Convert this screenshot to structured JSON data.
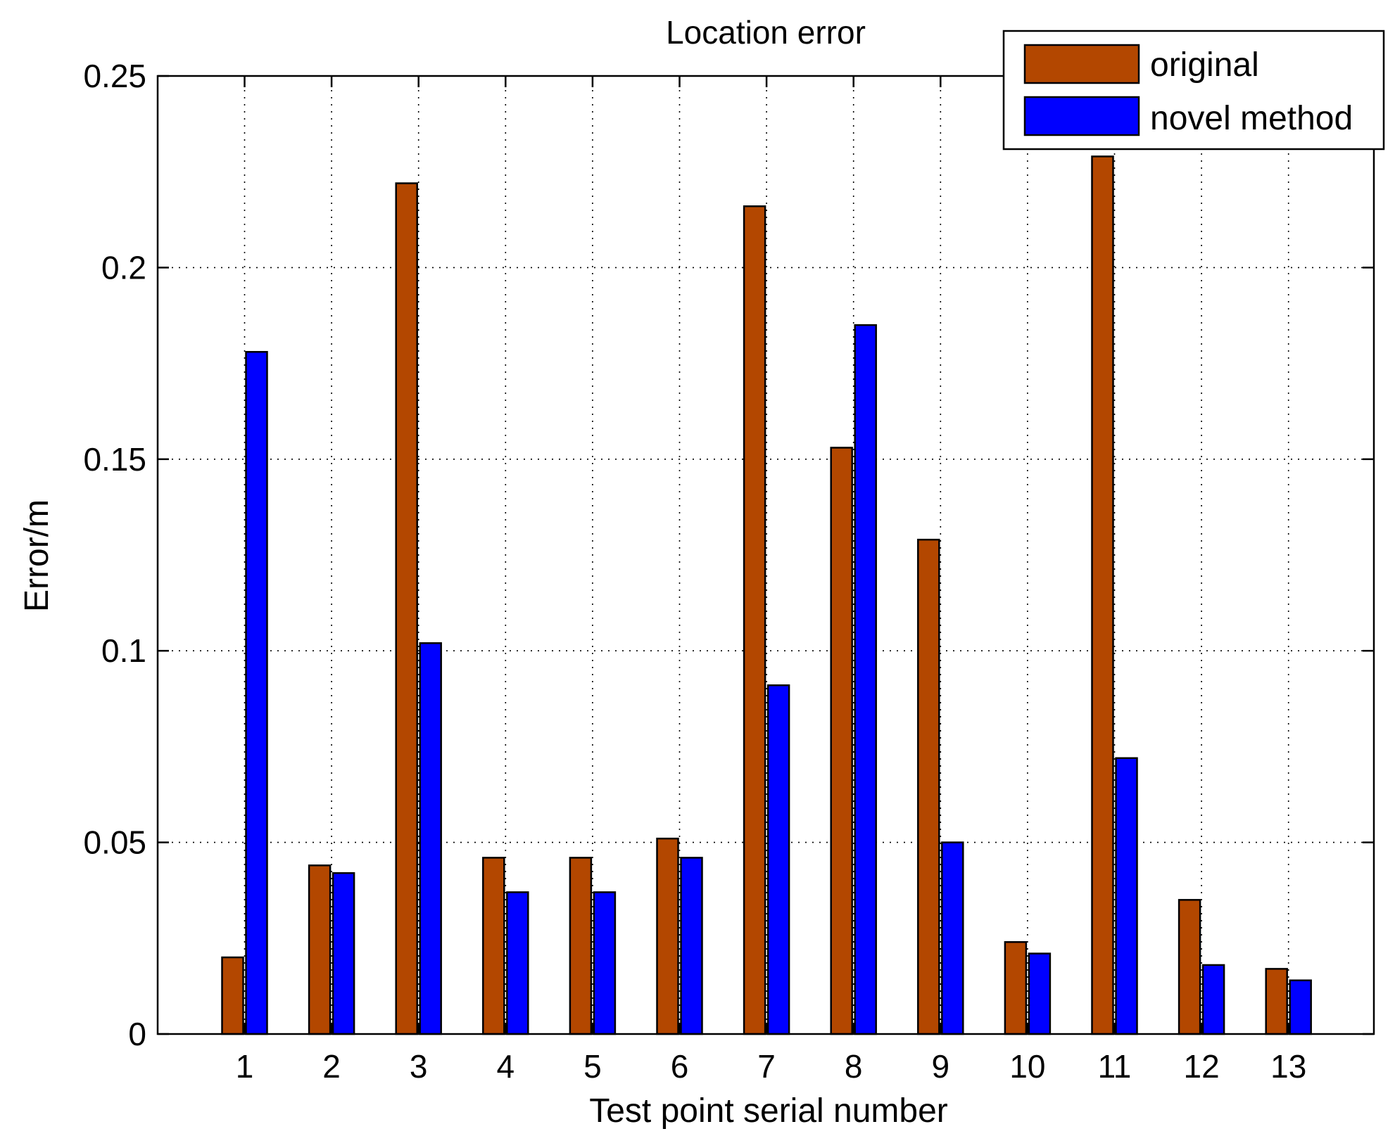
{
  "chart_data": {
    "type": "bar",
    "title": "Location error",
    "xlabel": "Test point serial number",
    "ylabel": "Error/m",
    "categories": [
      "1",
      "2",
      "3",
      "4",
      "5",
      "6",
      "7",
      "8",
      "9",
      "10",
      "11",
      "12",
      "13"
    ],
    "series": [
      {
        "name": "original",
        "color": "#B34700",
        "values": [
          0.02,
          0.044,
          0.222,
          0.046,
          0.046,
          0.051,
          0.216,
          0.153,
          0.129,
          0.024,
          0.229,
          0.035,
          0.017
        ]
      },
      {
        "name": "novel method",
        "color": "#0000FF",
        "values": [
          0.178,
          0.042,
          0.102,
          0.037,
          0.037,
          0.046,
          0.091,
          0.185,
          0.05,
          0.021,
          0.072,
          0.018,
          0.014
        ]
      }
    ],
    "ylim": [
      0,
      0.25
    ],
    "yticks": [
      0,
      0.05,
      0.1,
      0.15,
      0.2,
      0.25
    ],
    "ytick_labels": [
      "0",
      "0.05",
      "0.1",
      "0.15",
      "0.2",
      "0.25"
    ],
    "grid": true,
    "legend_position": "top-right"
  }
}
